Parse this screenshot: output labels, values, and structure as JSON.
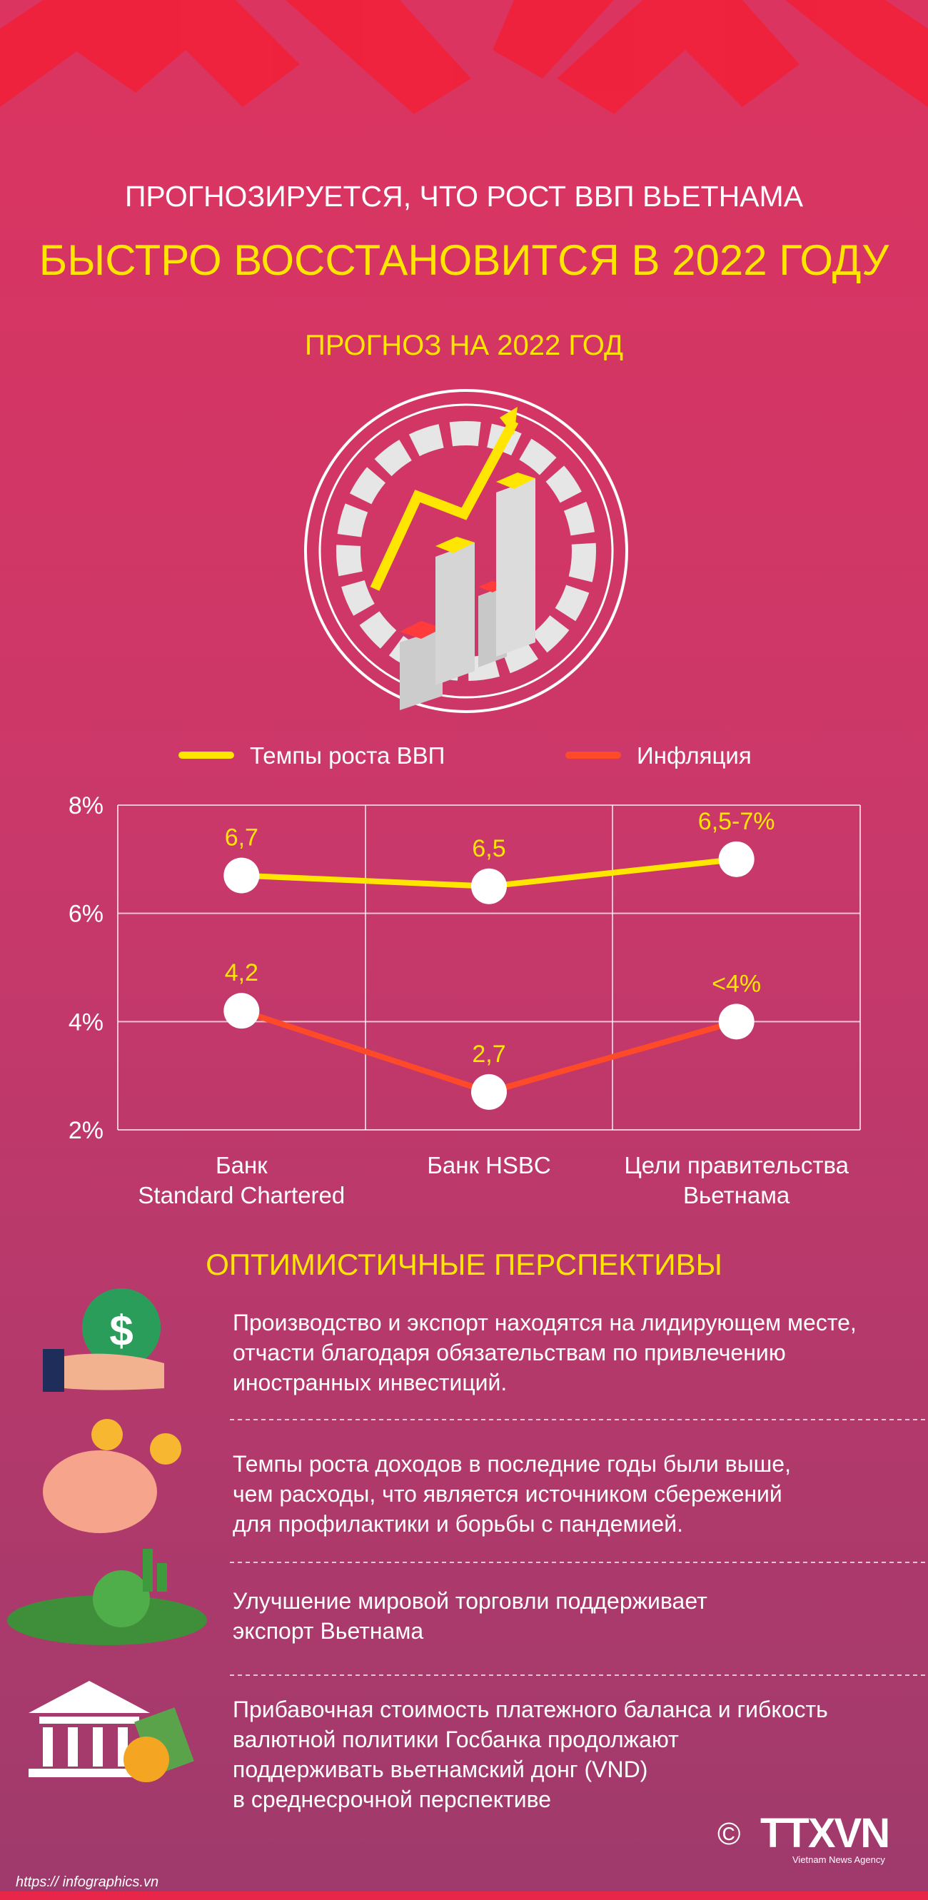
{
  "header": {
    "title_line1": "ПРОГНОЗИРУЕТСЯ, ЧТО РОСТ ВВП ВЬЕТНАМА",
    "title_line2": "БЫСТРО ВОССТАНОВИТСЯ В 2022 ГОДУ",
    "subtitle": "ПРОГНОЗ НА 2022 ГОД"
  },
  "chart_data": {
    "type": "line",
    "categories": [
      "Банк\nStandard Chartered",
      "Банк HSBC",
      "Цели правительства\nВьетнама"
    ],
    "series": [
      {
        "name": "Темпы роста ВВП",
        "color": "#ffe600",
        "values": [
          6.7,
          6.5,
          7
        ],
        "value_labels": [
          "6,7",
          "6,5",
          "6,5-7%"
        ]
      },
      {
        "name": "Инфляция",
        "color": "#ff4a2a",
        "values": [
          4.2,
          2.7,
          4
        ],
        "value_labels": [
          "4,2",
          "2,7",
          "<4%"
        ]
      }
    ],
    "ylim": [
      2,
      8
    ],
    "yticks": [
      {
        "value": 2,
        "label": "2%"
      },
      {
        "value": 4,
        "label": "4%"
      },
      {
        "value": 6,
        "label": "6%"
      },
      {
        "value": 8,
        "label": "8%"
      }
    ],
    "grid": true,
    "legend": "top"
  },
  "perspectives": {
    "title": "ОПТИМИСТИЧНЫЕ ПЕРСПЕКТИВЫ",
    "items": [
      "Производство и экспорт находятся на лидирующем месте,\nотчасти благодаря обязательствам по привлечению\nиностранных инвестиций.",
      "Темпы роста доходов в последние годы были выше,\nчем расходы, что является источником сбережений\nдля профилактики и борьбы с пандемией.",
      "Улучшение мировой торговли поддерживает\nэкспорт Вьетнама",
      "Прибавочная стоимость платежного баланса и гибкость\nвалютной политики Госбанка продолжают\nподдерживать вьетнамский донг (VND)\nв среднесрочной перспективе"
    ]
  },
  "footer": {
    "copyright": "©",
    "logo": "TTXVN",
    "logo_caption": "Vietnam News Agency",
    "url": "https:// infographics.vn"
  }
}
